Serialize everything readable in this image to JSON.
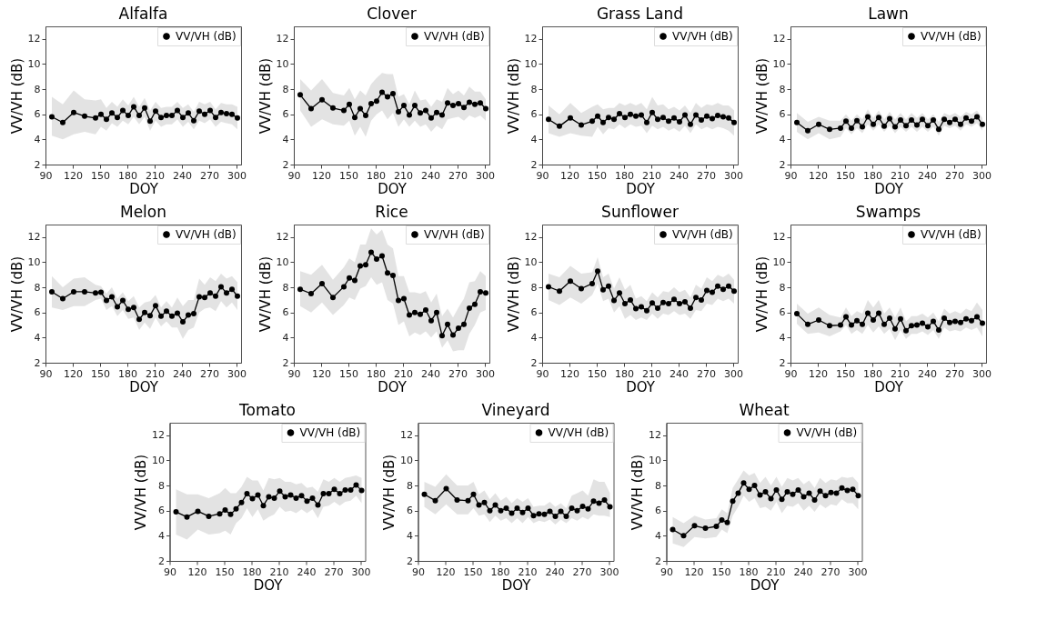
{
  "chart_data": [
    {
      "type": "line",
      "title": "Alfalfa",
      "xlabel": "DOY",
      "ylabel": "VV/VH (dB)",
      "xlim": [
        90,
        305
      ],
      "xticks": [
        90,
        120,
        150,
        180,
        210,
        240,
        270,
        300
      ],
      "ylim": [
        2,
        13
      ],
      "yticks": [
        2,
        4,
        6,
        8,
        10,
        12
      ],
      "legend": "top right",
      "marker": "circle",
      "x": [
        97,
        109,
        121,
        133,
        145,
        151,
        157,
        163,
        169,
        175,
        181,
        187,
        193,
        199,
        205,
        211,
        217,
        223,
        229,
        235,
        241,
        247,
        253,
        259,
        265,
        271,
        277,
        283,
        289,
        295,
        301
      ],
      "series": [
        {
          "name": "VV/VH (dB)",
          "color": "#000000",
          "values": [
            5.8,
            5.35,
            6.15,
            5.85,
            5.7,
            6.0,
            5.6,
            6.1,
            5.75,
            6.3,
            5.9,
            6.6,
            5.9,
            6.5,
            5.45,
            6.25,
            5.75,
            5.9,
            5.9,
            6.3,
            5.75,
            6.1,
            5.5,
            6.25,
            6.0,
            6.3,
            5.75,
            6.15,
            6.05,
            6.0,
            5.7
          ],
          "lower": [
            4.3,
            4.0,
            4.4,
            4.6,
            4.4,
            5.0,
            4.7,
            5.3,
            5.0,
            5.5,
            5.2,
            5.8,
            5.2,
            5.8,
            4.7,
            5.5,
            5.0,
            5.2,
            5.2,
            5.6,
            5.0,
            5.4,
            4.8,
            5.5,
            5.3,
            5.6,
            5.0,
            5.4,
            5.3,
            5.2,
            4.8
          ],
          "upper": [
            7.4,
            6.8,
            7.9,
            7.2,
            7.1,
            7.2,
            6.5,
            7.0,
            6.6,
            7.2,
            6.7,
            7.4,
            6.6,
            7.3,
            6.3,
            7.0,
            6.5,
            6.6,
            6.6,
            7.0,
            6.5,
            6.8,
            6.2,
            7.0,
            6.8,
            7.0,
            6.4,
            6.9,
            6.8,
            6.8,
            6.6
          ]
        }
      ]
    },
    {
      "type": "line",
      "title": "Clover",
      "xlabel": "DOY",
      "ylabel": "VV/VH (dB)",
      "xlim": [
        90,
        305
      ],
      "xticks": [
        90,
        120,
        150,
        180,
        210,
        240,
        270,
        300
      ],
      "ylim": [
        2,
        13
      ],
      "yticks": [
        2,
        4,
        6,
        8,
        10,
        12
      ],
      "legend": "top right",
      "marker": "circle",
      "x": [
        97,
        109,
        121,
        133,
        145,
        151,
        157,
        163,
        169,
        175,
        181,
        187,
        193,
        199,
        205,
        211,
        217,
        223,
        229,
        235,
        241,
        247,
        253,
        259,
        265,
        271,
        277,
        283,
        289,
        295,
        301
      ],
      "series": [
        {
          "name": "VV/VH (dB)",
          "color": "#000000",
          "values": [
            7.55,
            6.45,
            7.15,
            6.5,
            6.3,
            6.8,
            5.75,
            6.45,
            5.9,
            6.85,
            7.05,
            7.75,
            7.4,
            7.65,
            6.2,
            6.7,
            5.95,
            6.7,
            6.1,
            6.3,
            5.7,
            6.15,
            5.95,
            6.9,
            6.7,
            6.85,
            6.55,
            6.95,
            6.8,
            6.9,
            6.45
          ],
          "lower": [
            6.3,
            5.0,
            5.6,
            5.2,
            5.1,
            5.5,
            4.3,
            5.0,
            4.2,
            5.5,
            6.0,
            6.3,
            5.6,
            6.1,
            5.0,
            5.6,
            5.0,
            5.5,
            5.0,
            5.2,
            4.6,
            5.1,
            4.8,
            5.6,
            5.7,
            5.8,
            5.5,
            5.9,
            5.7,
            5.9,
            5.5
          ],
          "upper": [
            8.8,
            7.9,
            8.8,
            7.7,
            7.5,
            8.1,
            7.2,
            7.9,
            7.5,
            8.4,
            8.9,
            9.3,
            9.2,
            9.2,
            7.4,
            7.6,
            6.8,
            7.9,
            7.1,
            7.2,
            6.6,
            7.2,
            7.0,
            8.1,
            7.6,
            7.9,
            7.5,
            8.2,
            7.8,
            7.8,
            7.2
          ]
        }
      ]
    },
    {
      "type": "line",
      "title": "Grass Land",
      "xlabel": "DOY",
      "ylabel": "VV/VH (dB)",
      "xlim": [
        90,
        305
      ],
      "xticks": [
        90,
        120,
        150,
        180,
        210,
        240,
        270,
        300
      ],
      "ylim": [
        2,
        13
      ],
      "yticks": [
        2,
        4,
        6,
        8,
        10,
        12
      ],
      "legend": "top right",
      "marker": "circle",
      "x": [
        97,
        109,
        121,
        133,
        145,
        151,
        157,
        163,
        169,
        175,
        181,
        187,
        193,
        199,
        205,
        211,
        217,
        223,
        229,
        235,
        241,
        247,
        253,
        259,
        265,
        271,
        277,
        283,
        289,
        295,
        301
      ],
      "series": [
        {
          "name": "VV/VH (dB)",
          "color": "#000000",
          "values": [
            5.6,
            5.05,
            5.7,
            5.15,
            5.45,
            5.85,
            5.35,
            5.75,
            5.6,
            6.05,
            5.75,
            6.0,
            5.85,
            5.95,
            5.35,
            6.15,
            5.6,
            5.75,
            5.45,
            5.7,
            5.4,
            5.95,
            5.2,
            5.95,
            5.55,
            5.85,
            5.65,
            5.9,
            5.8,
            5.7,
            5.35
          ],
          "lower": [
            4.5,
            4.2,
            4.5,
            4.3,
            4.2,
            5.0,
            4.4,
            4.9,
            4.8,
            5.2,
            4.9,
            5.2,
            5.0,
            5.1,
            4.5,
            5.1,
            4.8,
            5.0,
            4.7,
            4.9,
            4.6,
            5.1,
            4.5,
            5.2,
            4.8,
            5.0,
            4.8,
            5.0,
            4.9,
            4.7,
            4.3
          ],
          "upper": [
            6.7,
            6.0,
            6.9,
            6.1,
            6.6,
            6.8,
            6.4,
            6.5,
            6.5,
            6.9,
            6.7,
            6.9,
            6.7,
            6.9,
            6.4,
            7.4,
            6.7,
            6.8,
            6.4,
            6.6,
            6.3,
            6.7,
            6.1,
            6.9,
            6.5,
            6.8,
            6.7,
            6.9,
            6.7,
            6.7,
            6.3
          ]
        }
      ]
    },
    {
      "type": "line",
      "title": "Lawn",
      "xlabel": "DOY",
      "ylabel": "VV/VH (dB)",
      "xlim": [
        90,
        305
      ],
      "xticks": [
        90,
        120,
        150,
        180,
        210,
        240,
        270,
        300
      ],
      "ylim": [
        2,
        13
      ],
      "yticks": [
        2,
        4,
        6,
        8,
        10,
        12
      ],
      "legend": "top right",
      "marker": "circle",
      "x": [
        97,
        109,
        121,
        133,
        145,
        151,
        157,
        163,
        169,
        175,
        181,
        187,
        193,
        199,
        205,
        211,
        217,
        223,
        229,
        235,
        241,
        247,
        253,
        259,
        265,
        271,
        277,
        283,
        289,
        295,
        301
      ],
      "series": [
        {
          "name": "VV/VH (dB)",
          "color": "#000000",
          "values": [
            5.35,
            4.7,
            5.2,
            4.8,
            4.9,
            5.45,
            4.9,
            5.5,
            5.0,
            5.8,
            5.2,
            5.75,
            5.05,
            5.65,
            5.0,
            5.55,
            5.1,
            5.55,
            5.15,
            5.6,
            5.1,
            5.55,
            4.8,
            5.6,
            5.35,
            5.6,
            5.2,
            5.7,
            5.45,
            5.8,
            5.2
          ],
          "lower": [
            4.6,
            4.0,
            4.5,
            4.0,
            4.2,
            4.9,
            4.4,
            4.9,
            4.5,
            5.2,
            4.7,
            5.2,
            4.6,
            5.1,
            4.5,
            5.0,
            4.6,
            5.0,
            4.6,
            5.0,
            4.6,
            5.0,
            4.3,
            5.1,
            4.9,
            5.1,
            4.7,
            5.2,
            5.0,
            5.3,
            4.7
          ],
          "upper": [
            6.1,
            5.4,
            5.8,
            5.5,
            5.5,
            6.0,
            5.5,
            6.0,
            5.6,
            6.4,
            5.7,
            6.3,
            5.6,
            6.2,
            5.6,
            6.1,
            5.6,
            6.1,
            5.7,
            6.1,
            5.6,
            6.0,
            5.4,
            6.1,
            5.9,
            6.1,
            5.8,
            6.2,
            6.0,
            6.3,
            5.7
          ]
        }
      ]
    },
    {
      "type": "line",
      "title": "Melon",
      "xlabel": "DOY",
      "ylabel": "VV/VH (dB)",
      "xlim": [
        90,
        305
      ],
      "xticks": [
        90,
        120,
        150,
        180,
        210,
        240,
        270,
        300
      ],
      "ylim": [
        2,
        13
      ],
      "yticks": [
        2,
        4,
        6,
        8,
        10,
        12
      ],
      "legend": "top right",
      "marker": "circle",
      "x": [
        97,
        109,
        121,
        133,
        145,
        151,
        157,
        163,
        169,
        175,
        181,
        187,
        193,
        199,
        205,
        211,
        217,
        223,
        229,
        235,
        241,
        247,
        253,
        259,
        265,
        271,
        277,
        283,
        289,
        295,
        301
      ],
      "series": [
        {
          "name": "VV/VH (dB)",
          "color": "#000000",
          "values": [
            7.65,
            7.1,
            7.65,
            7.65,
            7.55,
            7.6,
            6.95,
            7.25,
            6.45,
            6.95,
            6.25,
            6.4,
            5.45,
            6.0,
            5.75,
            6.55,
            5.7,
            6.1,
            5.7,
            5.95,
            5.25,
            5.8,
            5.9,
            7.25,
            7.2,
            7.55,
            7.3,
            8.05,
            7.55,
            7.85,
            7.3
          ],
          "lower": [
            6.4,
            6.2,
            6.5,
            6.5,
            7.0,
            7.1,
            6.2,
            6.5,
            5.7,
            6.2,
            5.5,
            5.6,
            4.6,
            5.2,
            4.7,
            5.6,
            4.9,
            5.3,
            4.8,
            4.8,
            3.9,
            4.6,
            4.8,
            6.0,
            6.3,
            6.4,
            6.1,
            6.9,
            6.4,
            6.8,
            6.2
          ],
          "upper": [
            8.9,
            8.0,
            8.7,
            8.8,
            8.2,
            8.1,
            7.5,
            8.0,
            7.1,
            7.6,
            6.9,
            7.3,
            6.4,
            6.8,
            6.9,
            7.4,
            6.4,
            6.9,
            6.4,
            7.2,
            6.5,
            7.0,
            7.0,
            8.7,
            8.2,
            8.8,
            8.5,
            9.1,
            8.7,
            8.9,
            8.4
          ]
        }
      ]
    },
    {
      "type": "line",
      "title": "Rice",
      "xlabel": "DOY",
      "ylabel": "VV/VH (dB)",
      "xlim": [
        90,
        305
      ],
      "xticks": [
        90,
        120,
        150,
        180,
        210,
        240,
        270,
        300
      ],
      "ylim": [
        2,
        13
      ],
      "yticks": [
        2,
        4,
        6,
        8,
        10,
        12
      ],
      "legend": "top right",
      "marker": "circle",
      "x": [
        97,
        109,
        121,
        133,
        145,
        151,
        157,
        163,
        169,
        175,
        181,
        187,
        193,
        199,
        205,
        211,
        217,
        223,
        229,
        235,
        241,
        247,
        253,
        259,
        265,
        271,
        277,
        283,
        289,
        295,
        301
      ],
      "series": [
        {
          "name": "VV/VH (dB)",
          "color": "#000000",
          "values": [
            7.85,
            7.5,
            8.3,
            7.2,
            8.05,
            8.75,
            8.55,
            9.7,
            9.8,
            10.8,
            10.25,
            10.5,
            9.15,
            8.95,
            6.95,
            7.1,
            5.8,
            6.0,
            5.85,
            6.2,
            5.35,
            6.0,
            4.15,
            5.05,
            4.2,
            4.75,
            5.05,
            6.35,
            6.65,
            7.65,
            7.55
          ],
          "lower": [
            6.5,
            6.0,
            6.8,
            5.8,
            6.6,
            7.2,
            7.0,
            7.9,
            8.1,
            8.8,
            8.2,
            8.4,
            7.0,
            6.7,
            5.0,
            5.3,
            4.1,
            4.4,
            4.2,
            4.5,
            4.0,
            4.5,
            3.2,
            3.8,
            2.9,
            3.0,
            3.0,
            4.3,
            5.0,
            6.0,
            6.2
          ],
          "upper": [
            9.3,
            9.0,
            9.8,
            8.6,
            9.6,
            10.3,
            10.0,
            11.4,
            11.4,
            12.7,
            12.2,
            12.6,
            11.4,
            11.1,
            8.9,
            8.9,
            7.6,
            7.6,
            7.5,
            7.7,
            6.8,
            7.5,
            5.7,
            6.3,
            5.6,
            6.4,
            7.1,
            8.4,
            8.5,
            9.3,
            8.9
          ]
        }
      ]
    },
    {
      "type": "line",
      "title": "Sunflower",
      "xlabel": "DOY",
      "ylabel": "VV/VH (dB)",
      "xlim": [
        90,
        305
      ],
      "xticks": [
        90,
        120,
        150,
        180,
        210,
        240,
        270,
        300
      ],
      "ylim": [
        2,
        13
      ],
      "yticks": [
        2,
        4,
        6,
        8,
        10,
        12
      ],
      "legend": "top right",
      "marker": "circle",
      "x": [
        97,
        109,
        121,
        133,
        145,
        151,
        157,
        163,
        169,
        175,
        181,
        187,
        193,
        199,
        205,
        211,
        217,
        223,
        229,
        235,
        241,
        247,
        253,
        259,
        265,
        271,
        277,
        283,
        289,
        295,
        301
      ],
      "series": [
        {
          "name": "VV/VH (dB)",
          "color": "#000000",
          "values": [
            8.05,
            7.7,
            8.5,
            7.9,
            8.3,
            9.3,
            7.8,
            8.1,
            6.95,
            7.55,
            6.7,
            7.0,
            6.3,
            6.45,
            6.15,
            6.75,
            6.35,
            6.8,
            6.7,
            7.05,
            6.7,
            6.85,
            6.35,
            7.2,
            7.0,
            7.75,
            7.6,
            8.1,
            7.85,
            8.1,
            7.7
          ],
          "lower": [
            7.0,
            6.6,
            7.2,
            6.7,
            7.4,
            8.3,
            6.9,
            7.1,
            6.0,
            6.5,
            5.5,
            5.8,
            5.4,
            5.6,
            5.4,
            5.9,
            5.5,
            5.9,
            5.8,
            6.1,
            5.8,
            5.9,
            5.5,
            6.2,
            6.1,
            6.7,
            6.6,
            7.1,
            6.9,
            7.1,
            6.7
          ],
          "upper": [
            9.1,
            8.8,
            9.7,
            9.1,
            9.2,
            10.4,
            8.8,
            9.1,
            7.9,
            8.8,
            7.8,
            8.2,
            7.1,
            7.3,
            6.9,
            7.6,
            7.2,
            7.7,
            7.6,
            8.0,
            7.6,
            7.8,
            7.2,
            8.2,
            7.9,
            8.8,
            8.5,
            9.0,
            8.8,
            9.1,
            8.6
          ]
        }
      ]
    },
    {
      "type": "line",
      "title": "Swamps",
      "xlabel": "DOY",
      "ylabel": "VV/VH (dB)",
      "xlim": [
        90,
        305
      ],
      "xticks": [
        90,
        120,
        150,
        180,
        210,
        240,
        270,
        300
      ],
      "ylim": [
        2,
        13
      ],
      "yticks": [
        2,
        4,
        6,
        8,
        10,
        12
      ],
      "legend": "top right",
      "marker": "circle",
      "x": [
        97,
        109,
        121,
        133,
        145,
        151,
        157,
        163,
        169,
        175,
        181,
        187,
        193,
        199,
        205,
        211,
        217,
        223,
        229,
        235,
        241,
        247,
        253,
        259,
        265,
        271,
        277,
        283,
        289,
        295,
        301
      ],
      "series": [
        {
          "name": "VV/VH (dB)",
          "color": "#000000",
          "values": [
            5.9,
            5.05,
            5.4,
            4.95,
            5.0,
            5.65,
            5.0,
            5.35,
            5.05,
            5.95,
            5.4,
            5.95,
            5.05,
            5.55,
            4.7,
            5.5,
            4.55,
            4.95,
            5.0,
            5.15,
            4.85,
            5.3,
            4.6,
            5.55,
            5.2,
            5.3,
            5.2,
            5.5,
            5.35,
            5.65,
            5.15
          ],
          "lower": [
            5.1,
            4.3,
            4.4,
            4.1,
            4.5,
            5.0,
            4.3,
            4.6,
            4.3,
            5.0,
            4.4,
            4.9,
            4.3,
            4.7,
            3.8,
            4.6,
            3.9,
            4.3,
            4.3,
            4.5,
            4.2,
            4.6,
            3.9,
            4.8,
            4.5,
            4.6,
            4.5,
            4.8,
            4.6,
            4.8,
            4.1
          ],
          "upper": [
            6.7,
            5.9,
            6.4,
            5.8,
            5.6,
            6.4,
            5.7,
            6.1,
            5.9,
            7.0,
            6.4,
            7.0,
            5.9,
            6.4,
            5.6,
            6.4,
            5.3,
            5.7,
            5.7,
            5.9,
            5.6,
            6.0,
            5.3,
            6.3,
            5.9,
            6.1,
            5.9,
            6.3,
            6.1,
            6.8,
            6.2
          ]
        }
      ]
    },
    {
      "type": "line",
      "title": "Tomato",
      "xlabel": "DOY",
      "ylabel": "VV/VH (dB)",
      "xlim": [
        90,
        305
      ],
      "xticks": [
        90,
        120,
        150,
        180,
        210,
        240,
        270,
        300
      ],
      "ylim": [
        2,
        13
      ],
      "yticks": [
        2,
        4,
        6,
        8,
        10,
        12
      ],
      "legend": "top right",
      "marker": "circle",
      "x": [
        97,
        109,
        121,
        133,
        145,
        151,
        157,
        163,
        169,
        175,
        181,
        187,
        193,
        199,
        205,
        211,
        217,
        223,
        229,
        235,
        241,
        247,
        253,
        259,
        265,
        271,
        277,
        283,
        289,
        295,
        301
      ],
      "series": [
        {
          "name": "VV/VH (dB)",
          "color": "#000000",
          "values": [
            5.9,
            5.5,
            5.95,
            5.55,
            5.75,
            6.05,
            5.7,
            6.15,
            6.65,
            7.35,
            6.95,
            7.25,
            6.4,
            7.1,
            7.0,
            7.55,
            7.1,
            7.25,
            7.0,
            7.2,
            6.75,
            7.0,
            6.45,
            7.35,
            7.35,
            7.7,
            7.35,
            7.65,
            7.65,
            8.05,
            7.6
          ],
          "lower": [
            4.1,
            3.7,
            4.5,
            4.1,
            4.2,
            4.4,
            4.1,
            5.0,
            5.4,
            6.2,
            5.5,
            6.1,
            5.2,
            5.5,
            5.7,
            6.3,
            5.9,
            6.0,
            5.8,
            6.1,
            5.8,
            6.1,
            5.4,
            6.3,
            6.4,
            6.7,
            6.4,
            6.7,
            6.8,
            7.2,
            6.6
          ],
          "upper": [
            7.7,
            7.3,
            7.3,
            7.0,
            7.4,
            7.8,
            7.4,
            7.4,
            7.9,
            8.7,
            8.4,
            8.4,
            7.6,
            8.6,
            8.5,
            8.6,
            8.3,
            8.3,
            8.1,
            8.2,
            7.8,
            7.9,
            7.5,
            8.5,
            8.3,
            8.6,
            8.3,
            8.6,
            8.7,
            8.8,
            8.6
          ]
        }
      ]
    },
    {
      "type": "line",
      "title": "Vineyard",
      "xlabel": "DOY",
      "ylabel": "VV/VH (dB)",
      "xlim": [
        90,
        305
      ],
      "xticks": [
        90,
        120,
        150,
        180,
        210,
        240,
        270,
        300
      ],
      "ylim": [
        2,
        13
      ],
      "yticks": [
        2,
        4,
        6,
        8,
        10,
        12
      ],
      "legend": "top right",
      "marker": "circle",
      "x": [
        97,
        109,
        121,
        133,
        145,
        151,
        157,
        163,
        169,
        175,
        181,
        187,
        193,
        199,
        205,
        211,
        217,
        223,
        229,
        235,
        241,
        247,
        253,
        259,
        265,
        271,
        277,
        283,
        289,
        295,
        301
      ],
      "series": [
        {
          "name": "VV/VH (dB)",
          "color": "#000000",
          "values": [
            7.3,
            6.8,
            7.75,
            6.85,
            6.8,
            7.3,
            6.45,
            6.65,
            6.0,
            6.45,
            6.0,
            6.2,
            5.8,
            6.2,
            5.85,
            6.2,
            5.6,
            5.75,
            5.7,
            5.95,
            5.55,
            5.95,
            5.55,
            6.2,
            6.0,
            6.35,
            6.15,
            6.75,
            6.6,
            6.85,
            6.3
          ],
          "lower": [
            6.3,
            5.7,
            6.5,
            5.7,
            5.7,
            6.2,
            5.6,
            5.7,
            5.1,
            5.6,
            5.2,
            5.4,
            5.0,
            5.4,
            5.0,
            5.5,
            5.0,
            5.2,
            5.1,
            5.3,
            4.9,
            5.3,
            5.0,
            5.4,
            5.2,
            5.5,
            5.3,
            5.7,
            5.6,
            5.6,
            5.5
          ],
          "upper": [
            8.3,
            7.9,
            8.9,
            8.0,
            8.0,
            8.3,
            7.3,
            7.6,
            6.9,
            7.4,
            6.8,
            7.1,
            6.6,
            7.0,
            6.7,
            7.0,
            6.3,
            6.4,
            6.4,
            6.7,
            6.3,
            6.6,
            6.2,
            7.2,
            7.4,
            7.6,
            7.2,
            8.5,
            8.3,
            8.3,
            7.4
          ]
        }
      ]
    },
    {
      "type": "line",
      "title": "Wheat",
      "xlabel": "DOY",
      "ylabel": "VV/VH (dB)",
      "xlim": [
        90,
        305
      ],
      "xticks": [
        90,
        120,
        150,
        180,
        210,
        240,
        270,
        300
      ],
      "ylim": [
        2,
        13
      ],
      "yticks": [
        2,
        4,
        6,
        8,
        10,
        12
      ],
      "legend": "top right",
      "marker": "circle",
      "x": [
        97,
        109,
        121,
        133,
        145,
        151,
        157,
        163,
        169,
        175,
        181,
        187,
        193,
        199,
        205,
        211,
        217,
        223,
        229,
        235,
        241,
        247,
        253,
        259,
        265,
        271,
        277,
        283,
        289,
        295,
        301
      ],
      "series": [
        {
          "name": "VV/VH (dB)",
          "color": "#000000",
          "values": [
            4.5,
            4.0,
            4.8,
            4.6,
            4.75,
            5.25,
            5.05,
            6.75,
            7.4,
            8.2,
            7.7,
            8.0,
            7.25,
            7.5,
            6.95,
            7.65,
            6.9,
            7.5,
            7.3,
            7.65,
            7.1,
            7.4,
            6.85,
            7.55,
            7.2,
            7.45,
            7.4,
            7.8,
            7.6,
            7.7,
            7.2
          ],
          "lower": [
            3.4,
            3.1,
            3.9,
            3.8,
            3.9,
            4.5,
            4.2,
            5.6,
            6.3,
            7.2,
            6.7,
            7.0,
            6.2,
            6.3,
            6.0,
            6.7,
            5.8,
            6.4,
            6.3,
            6.6,
            6.0,
            6.4,
            5.9,
            6.5,
            6.2,
            6.5,
            6.4,
            6.9,
            6.6,
            6.6,
            6.1
          ],
          "upper": [
            5.5,
            5.0,
            5.6,
            5.3,
            5.4,
            6.1,
            5.8,
            7.8,
            8.5,
            9.2,
            8.8,
            9.0,
            8.2,
            8.7,
            8.0,
            8.7,
            7.9,
            8.6,
            8.4,
            8.6,
            8.1,
            8.4,
            7.8,
            8.6,
            8.2,
            8.5,
            8.4,
            8.7,
            8.6,
            8.7,
            8.2
          ]
        }
      ]
    }
  ]
}
